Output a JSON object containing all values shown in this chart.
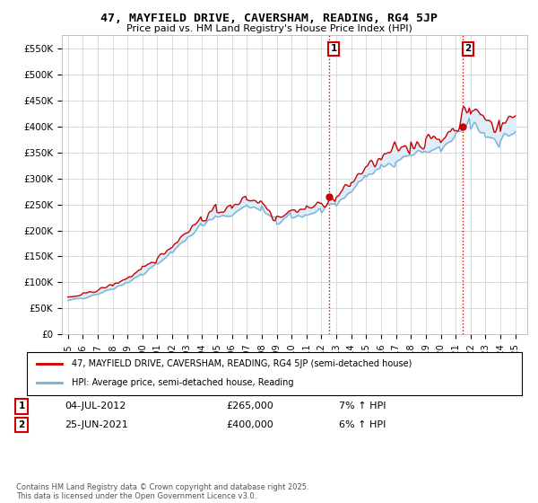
{
  "title_line1": "47, MAYFIELD DRIVE, CAVERSHAM, READING, RG4 5JP",
  "title_line2": "Price paid vs. HM Land Registry's House Price Index (HPI)",
  "ylim": [
    0,
    575000
  ],
  "yticks": [
    0,
    50000,
    100000,
    150000,
    200000,
    250000,
    300000,
    350000,
    400000,
    450000,
    500000,
    550000
  ],
  "ytick_labels": [
    "£0",
    "£50K",
    "£100K",
    "£150K",
    "£200K",
    "£250K",
    "£300K",
    "£350K",
    "£400K",
    "£450K",
    "£500K",
    "£550K"
  ],
  "legend_label1": "47, MAYFIELD DRIVE, CAVERSHAM, READING, RG4 5JP (semi-detached house)",
  "legend_label2": "HPI: Average price, semi-detached house, Reading",
  "annotation1_date": "04-JUL-2012",
  "annotation1_price": "£265,000",
  "annotation1_hpi": "7% ↑ HPI",
  "annotation2_date": "25-JUN-2021",
  "annotation2_price": "£400,000",
  "annotation2_hpi": "6% ↑ HPI",
  "footer": "Contains HM Land Registry data © Crown copyright and database right 2025.\nThis data is licensed under the Open Government Licence v3.0.",
  "line1_color": "#cc0000",
  "line2_color": "#7ab0d4",
  "fill_color": "#ddeef8",
  "vline_color": "#cc0000",
  "marker1_x": 2012.5,
  "marker2_x": 2021.5,
  "marker1_y": 265000,
  "marker2_y": 400000,
  "background_color": "#ffffff",
  "grid_color": "#cccccc",
  "xlim_min": 1994.6,
  "xlim_max": 2025.8
}
